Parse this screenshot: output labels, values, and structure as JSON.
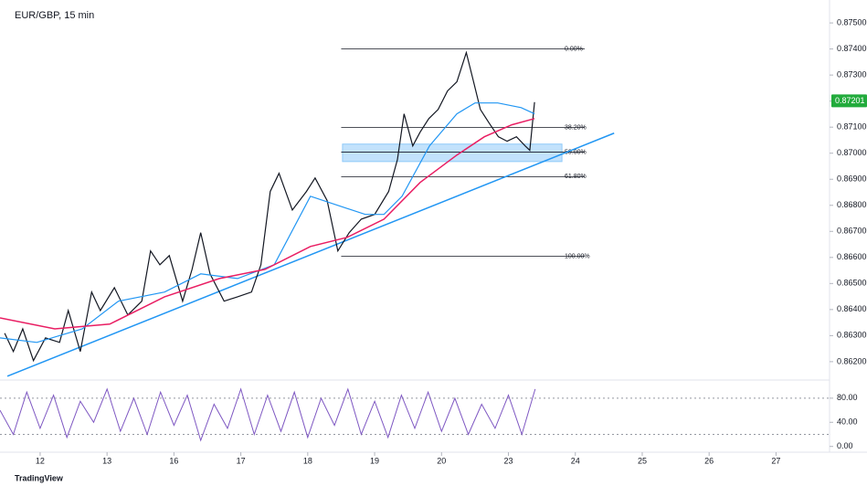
{
  "title": "EUR/GBP, 15 min",
  "brand": "TradingView",
  "chart_data": [
    {
      "type": "line",
      "xlim": [
        -0.6,
        11.8
      ],
      "ylim": [
        0.86133,
        0.87588
      ],
      "xticks": [
        {
          "value": 0,
          "label": "12"
        },
        {
          "value": 1,
          "label": "13"
        },
        {
          "value": 2,
          "label": "16"
        },
        {
          "value": 3,
          "label": "17"
        },
        {
          "value": 4,
          "label": "18"
        },
        {
          "value": 5,
          "label": "19"
        },
        {
          "value": 6,
          "label": "20"
        },
        {
          "value": 7,
          "label": "23"
        },
        {
          "value": 8,
          "label": "24"
        },
        {
          "value": 9,
          "label": "25"
        },
        {
          "value": 10,
          "label": "26"
        },
        {
          "value": 11,
          "label": "27"
        }
      ],
      "yticks": [
        {
          "value": 0.862,
          "label": "0.86200"
        },
        {
          "value": 0.863,
          "label": "0.86300"
        },
        {
          "value": 0.864,
          "label": "0.86400"
        },
        {
          "value": 0.865,
          "label": "0.86500"
        },
        {
          "value": 0.866,
          "label": "0.86600"
        },
        {
          "value": 0.867,
          "label": "0.86700"
        },
        {
          "value": 0.868,
          "label": "0.86800"
        },
        {
          "value": 0.869,
          "label": "0.86900"
        },
        {
          "value": 0.87,
          "label": "0.87000"
        },
        {
          "value": 0.871,
          "label": "0.87100"
        },
        {
          "value": 0.872,
          "label": "0.87200"
        },
        {
          "value": 0.873,
          "label": "0.87300"
        },
        {
          "value": 0.874,
          "label": "0.87400"
        },
        {
          "value": 0.875,
          "label": "0.87500"
        }
      ],
      "series": [
        {
          "color": "#131722",
          "width": 1.2,
          "x": [
            -0.53,
            -0.4,
            -0.26,
            -0.1,
            0.08,
            0.29,
            0.42,
            0.6,
            0.77,
            0.9,
            1.11,
            1.31,
            1.52,
            1.65,
            1.79,
            1.93,
            2.13,
            2.27,
            2.4,
            2.54,
            2.75,
            2.95,
            3.16,
            3.3,
            3.44,
            3.57,
            3.77,
            3.98,
            4.11,
            4.29,
            4.45,
            4.62,
            4.8,
            5.0,
            5.21,
            5.34,
            5.44,
            5.57,
            5.68,
            5.81,
            5.95,
            6.09,
            6.23,
            6.37,
            6.48,
            6.58,
            6.71,
            6.85,
            6.98,
            7.12,
            7.25,
            7.32,
            7.39
          ],
          "y": [
            0.86309,
            0.86239,
            0.86326,
            0.86204,
            0.86291,
            0.86274,
            0.86396,
            0.86239,
            0.86467,
            0.86396,
            0.86484,
            0.86379,
            0.86432,
            0.86625,
            0.86572,
            0.86607,
            0.86432,
            0.86554,
            0.86695,
            0.86537,
            0.86432,
            0.86449,
            0.86467,
            0.86572,
            0.86853,
            0.86923,
            0.86782,
            0.86853,
            0.86905,
            0.86818,
            0.86625,
            0.86695,
            0.86747,
            0.86765,
            0.86853,
            0.86975,
            0.87151,
            0.87028,
            0.87081,
            0.87133,
            0.87168,
            0.87239,
            0.87274,
            0.87386,
            0.87274,
            0.87168,
            0.87116,
            0.87063,
            0.87046,
            0.87063,
            0.87028,
            0.87011,
            0.87196
          ]
        },
        {
          "color": "#2196f3",
          "width": 1.2,
          "x": [
            -0.6,
            -0.05,
            0.63,
            1.17,
            1.86,
            2.4,
            2.95,
            3.5,
            4.04,
            4.45,
            4.86,
            5.14,
            5.41,
            5.82,
            6.23,
            6.5,
            6.84,
            7.19,
            7.39
          ],
          "y": [
            0.86291,
            0.86274,
            0.86326,
            0.86432,
            0.86467,
            0.86537,
            0.86519,
            0.86572,
            0.86835,
            0.868,
            0.86765,
            0.86765,
            0.86835,
            0.87028,
            0.87151,
            0.87193,
            0.87193,
            0.87175,
            0.87151
          ]
        },
        {
          "color": "#e91e63",
          "width": 1.5,
          "x": [
            -0.6,
            0.22,
            1.04,
            1.86,
            2.68,
            3.36,
            4.04,
            4.59,
            5.14,
            5.68,
            6.23,
            6.64,
            7.05,
            7.39
          ],
          "y": [
            0.86368,
            0.86326,
            0.86344,
            0.86449,
            0.86519,
            0.86554,
            0.86642,
            0.86677,
            0.86747,
            0.86888,
            0.86993,
            0.87063,
            0.87109,
            0.87133
          ]
        }
      ],
      "trendline": {
        "color": "#2196f3",
        "x": [
          -0.49,
          8.58
        ],
        "y": [
          0.86144,
          0.87077
        ]
      },
      "zone": {
        "color": "#90caf9",
        "x": [
          4.52,
          7.8
        ],
        "y": [
          0.86968,
          0.87035
        ]
      },
      "levels_x": [
        4.5,
        8.14
      ],
      "levels": [
        {
          "value": 0.874,
          "label": "0.00%"
        },
        {
          "value": 0.87099,
          "label": "38.20%"
        },
        {
          "value": 0.87004,
          "label": "50.00%"
        },
        {
          "value": 0.8691,
          "label": "61.80%"
        },
        {
          "value": 0.86604,
          "label": "100.00%"
        }
      ],
      "last_price": 0.87201,
      "last_color": "#22ab3c"
    },
    {
      "type": "line",
      "xlim": [
        -0.6,
        11.8
      ],
      "ylim": [
        -5,
        104
      ],
      "yticks": [
        {
          "value": 0,
          "label": "0.00"
        },
        {
          "value": 40,
          "label": "40.00"
        },
        {
          "value": 80,
          "label": "80.00"
        }
      ],
      "bands": [
        20,
        80
      ],
      "series": [
        {
          "color": "#7e57c2",
          "width": 1,
          "x": [
            -0.6,
            -0.4,
            -0.2,
            0,
            0.2,
            0.4,
            0.6,
            0.8,
            1,
            1.2,
            1.4,
            1.6,
            1.8,
            2,
            2.2,
            2.4,
            2.6,
            2.8,
            3,
            3.2,
            3.4,
            3.6,
            3.8,
            4,
            4.2,
            4.4,
            4.6,
            4.8,
            5,
            5.2,
            5.4,
            5.6,
            5.8,
            6,
            6.2,
            6.4,
            6.6,
            6.8,
            7,
            7.2,
            7.4
          ],
          "y": [
            60,
            20,
            90,
            30,
            85,
            15,
            75,
            40,
            95,
            25,
            80,
            20,
            90,
            35,
            85,
            10,
            70,
            30,
            95,
            20,
            85,
            25,
            90,
            15,
            80,
            35,
            95,
            20,
            75,
            15,
            85,
            30,
            90,
            25,
            80,
            20,
            70,
            30,
            85,
            20,
            95
          ]
        }
      ]
    }
  ]
}
